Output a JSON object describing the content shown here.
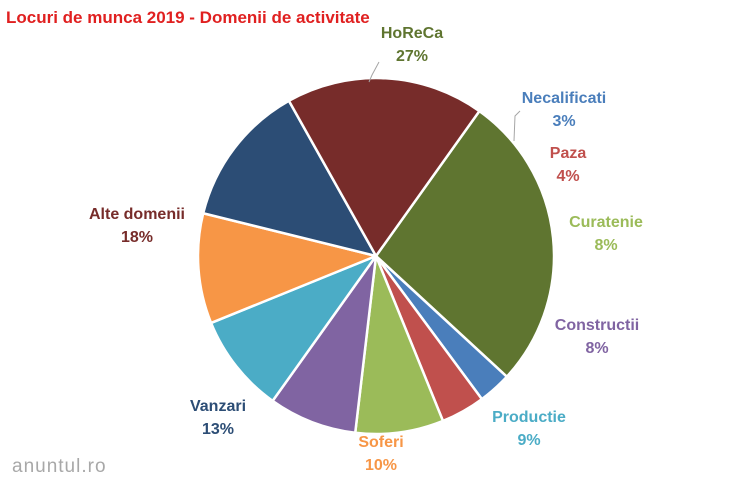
{
  "chart_data": {
    "type": "pie",
    "title": "Locuri de munca 2019 - Domenii de activitate",
    "slices": [
      {
        "label": "HoReCa",
        "value": 27,
        "display": "27%",
        "color": "#5f7530"
      },
      {
        "label": "Necalificati",
        "value": 3,
        "display": "3%",
        "color": "#4a7ebb"
      },
      {
        "label": "Paza",
        "value": 4,
        "display": "4%",
        "color": "#c0504d"
      },
      {
        "label": "Curatenie",
        "value": 8,
        "display": "8%",
        "color": "#9bbb59"
      },
      {
        "label": "Constructii",
        "value": 8,
        "display": "8%",
        "color": "#8064a2"
      },
      {
        "label": "Productie",
        "value": 9,
        "display": "9%",
        "color": "#4bacc6"
      },
      {
        "label": "Soferi",
        "value": 10,
        "display": "10%",
        "color": "#f79646"
      },
      {
        "label": "Vanzari",
        "value": 13,
        "display": "13%",
        "color": "#2c4d75"
      },
      {
        "label": "Alte domenii",
        "value": 18,
        "display": "18%",
        "color": "#772c2a"
      }
    ]
  },
  "watermark": "anuntul.ro"
}
